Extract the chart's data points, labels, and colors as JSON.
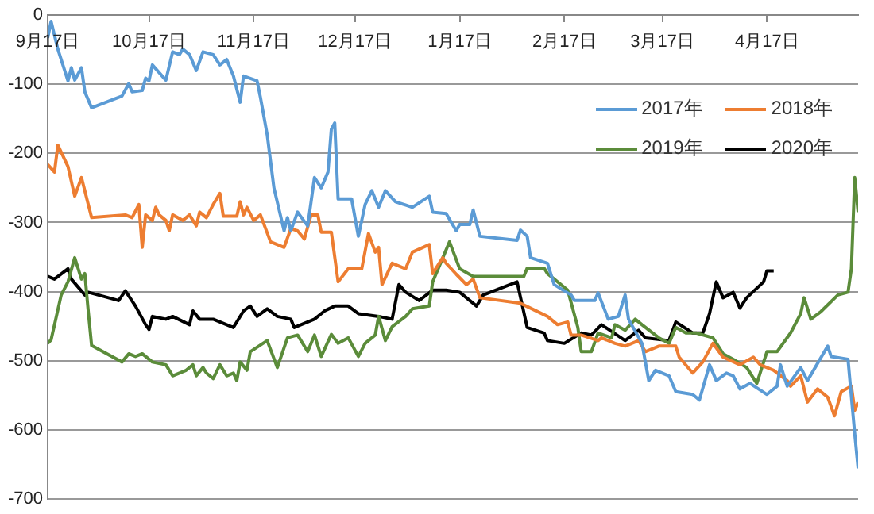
{
  "chart_data": {
    "type": "line",
    "xlim": [
      "2019-09-17",
      "2020-05-14"
    ],
    "ylim": [
      -700,
      0
    ],
    "xticks": [
      {
        "value": "2019-09-17",
        "label": "9月17日"
      },
      {
        "value": "2019-10-17",
        "label": "10月17日"
      },
      {
        "value": "2019-11-17",
        "label": "11月17日"
      },
      {
        "value": "2019-12-17",
        "label": "12月17日"
      },
      {
        "value": "2020-01-17",
        "label": "1月17日"
      },
      {
        "value": "2020-02-17",
        "label": "2月17日"
      },
      {
        "value": "2020-03-17",
        "label": "3月17日"
      },
      {
        "value": "2020-04-17",
        "label": "4月17日"
      }
    ],
    "yticks": [
      0,
      -100,
      -200,
      -300,
      -400,
      -500,
      -600,
      -700
    ],
    "grid": "y",
    "legend": "top right",
    "marker": "none",
    "line_style": "solid",
    "series": [
      {
        "name": "2017年",
        "color": "#5b9bd5",
        "x": [
          "2019-09-17",
          "2019-09-18",
          "2019-09-20",
          "2019-09-23",
          "2019-09-24",
          "2019-09-25",
          "2019-09-27",
          "2019-09-28",
          "2019-09-30",
          "2019-10-09",
          "2019-10-11",
          "2019-10-12",
          "2019-10-15",
          "2019-10-16",
          "2019-10-17",
          "2019-10-18",
          "2019-10-22",
          "2019-10-24",
          "2019-10-26",
          "2019-10-27",
          "2019-10-29",
          "2019-10-31",
          "2019-11-02",
          "2019-11-05",
          "2019-11-07",
          "2019-11-09",
          "2019-11-11",
          "2019-11-13",
          "2019-11-14",
          "2019-11-18",
          "2019-11-19",
          "2019-11-21",
          "2019-11-23",
          "2019-11-26",
          "2019-11-27",
          "2019-11-28",
          "2019-11-30",
          "2019-12-03",
          "2019-12-05",
          "2019-12-07",
          "2019-12-09",
          "2019-12-10",
          "2019-12-11",
          "2019-12-12",
          "2019-12-16",
          "2019-12-18",
          "2019-12-20",
          "2019-12-22",
          "2019-12-24",
          "2019-12-26",
          "2019-12-29",
          "2020-01-03",
          "2020-01-08",
          "2020-01-09",
          "2020-01-13",
          "2020-01-16",
          "2020-01-17",
          "2020-01-20",
          "2020-01-21",
          "2020-01-23",
          "2020-02-03",
          "2020-02-04",
          "2020-02-06",
          "2020-02-07",
          "2020-02-12",
          "2020-02-14",
          "2020-02-19",
          "2020-02-20",
          "2020-02-26",
          "2020-02-27",
          "2020-03-01",
          "2020-03-04",
          "2020-03-06",
          "2020-03-07",
          "2020-03-11",
          "2020-03-13",
          "2020-03-15",
          "2020-03-19",
          "2020-03-21",
          "2020-03-26",
          "2020-03-28",
          "2020-03-31",
          "2020-04-02",
          "2020-04-05",
          "2020-04-07",
          "2020-04-09",
          "2020-04-12",
          "2020-04-17",
          "2020-04-20",
          "2020-04-21",
          "2020-04-23",
          "2020-04-27",
          "2020-04-29",
          "2020-05-05",
          "2020-05-06",
          "2020-05-11",
          "2020-05-13",
          "2020-05-14"
        ],
        "values": [
          -33,
          -9,
          -49,
          -95,
          -76,
          -94,
          -76,
          -111,
          -134,
          -117,
          -99,
          -111,
          -109,
          -91,
          -95,
          -72,
          -94,
          -53,
          -57,
          -49,
          -57,
          -80,
          -53,
          -57,
          -72,
          -64,
          -88,
          -126,
          -88,
          -95,
          -119,
          -173,
          -250,
          -312,
          -293,
          -312,
          -285,
          -305,
          -235,
          -250,
          -227,
          -165,
          -156,
          -266,
          -266,
          -320,
          -274,
          -254,
          -278,
          -254,
          -270,
          -278,
          -262,
          -285,
          -287,
          -312,
          -303,
          -303,
          -282,
          -320,
          -326,
          -311,
          -320,
          -351,
          -359,
          -390,
          -405,
          -413,
          -413,
          -402,
          -440,
          -436,
          -405,
          -440,
          -475,
          -529,
          -514,
          -522,
          -545,
          -549,
          -557,
          -506,
          -529,
          -518,
          -522,
          -541,
          -533,
          -549,
          -537,
          -506,
          -537,
          -510,
          -529,
          -479,
          -494,
          -498,
          -606,
          -656
        ]
      },
      {
        "name": "2018年",
        "color": "#ed7d31",
        "x": [
          "2019-09-17",
          "2019-09-19",
          "2019-09-20",
          "2019-09-23",
          "2019-09-25",
          "2019-09-27",
          "2019-09-30",
          "2019-10-10",
          "2019-10-12",
          "2019-10-14",
          "2019-10-15",
          "2019-10-16",
          "2019-10-18",
          "2019-10-19",
          "2019-10-20",
          "2019-10-22",
          "2019-10-23",
          "2019-10-24",
          "2019-10-27",
          "2019-10-29",
          "2019-10-31",
          "2019-11-01",
          "2019-11-03",
          "2019-11-05",
          "2019-11-07",
          "2019-11-08",
          "2019-11-12",
          "2019-11-13",
          "2019-11-14",
          "2019-11-15",
          "2019-11-17",
          "2019-11-19",
          "2019-11-22",
          "2019-11-26",
          "2019-11-28",
          "2019-11-30",
          "2019-12-02",
          "2019-12-04",
          "2019-12-06",
          "2019-12-07",
          "2019-12-10",
          "2019-12-12",
          "2019-12-15",
          "2019-12-19",
          "2019-12-21",
          "2019-12-23",
          "2019-12-24",
          "2019-12-25",
          "2019-12-28",
          "2020-01-01",
          "2020-01-03",
          "2020-01-08",
          "2020-01-09",
          "2020-01-12",
          "2020-01-13",
          "2020-01-16",
          "2020-01-19",
          "2020-01-21",
          "2020-01-23",
          "2020-02-04",
          "2020-02-12",
          "2020-02-15",
          "2020-02-18",
          "2020-02-19",
          "2020-02-22",
          "2020-02-27",
          "2020-02-28",
          "2020-03-03",
          "2020-03-06",
          "2020-03-10",
          "2020-03-12",
          "2020-03-16",
          "2020-03-21",
          "2020-03-22",
          "2020-03-26",
          "2020-03-29",
          "2020-04-01",
          "2020-04-04",
          "2020-04-09",
          "2020-04-13",
          "2020-04-15",
          "2020-04-19",
          "2020-04-23",
          "2020-04-24",
          "2020-04-27",
          "2020-04-29",
          "2020-05-02",
          "2020-05-05",
          "2020-05-07",
          "2020-05-09",
          "2020-05-12",
          "2020-05-13",
          "2020-05-14"
        ],
        "values": [
          -216,
          -227,
          -188,
          -219,
          -262,
          -235,
          -293,
          -289,
          -293,
          -274,
          -336,
          -289,
          -297,
          -278,
          -289,
          -297,
          -312,
          -289,
          -297,
          -289,
          -305,
          -285,
          -293,
          -274,
          -258,
          -291,
          -291,
          -270,
          -289,
          -278,
          -297,
          -289,
          -328,
          -336,
          -309,
          -312,
          -324,
          -289,
          -289,
          -314,
          -314,
          -386,
          -367,
          -367,
          -316,
          -343,
          -336,
          -390,
          -359,
          -367,
          -343,
          -332,
          -374,
          -351,
          -359,
          -375,
          -390,
          -382,
          -409,
          -417,
          -436,
          -448,
          -444,
          -463,
          -463,
          -471,
          -467,
          -475,
          -479,
          -471,
          -487,
          -479,
          -479,
          -495,
          -518,
          -502,
          -475,
          -495,
          -506,
          -495,
          -506,
          -514,
          -529,
          -537,
          -522,
          -560,
          -541,
          -553,
          -580,
          -545,
          -537,
          -572,
          -560
        ]
      },
      {
        "name": "2019年",
        "color": "#5b8c3a",
        "x": [
          "2019-09-17",
          "2019-09-18",
          "2019-09-21",
          "2019-09-23",
          "2019-09-25",
          "2019-09-27",
          "2019-09-28",
          "2019-09-29",
          "2019-09-30",
          "2019-10-09",
          "2019-10-11",
          "2019-10-13",
          "2019-10-15",
          "2019-10-18",
          "2019-10-22",
          "2019-10-24",
          "2019-10-28",
          "2019-10-30",
          "2019-10-31",
          "2019-11-02",
          "2019-11-03",
          "2019-11-05",
          "2019-11-07",
          "2019-11-09",
          "2019-11-11",
          "2019-11-12",
          "2019-11-13",
          "2019-11-15",
          "2019-11-16",
          "2019-11-21",
          "2019-11-24",
          "2019-11-27",
          "2019-11-30",
          "2019-12-03",
          "2019-12-05",
          "2019-12-07",
          "2019-12-10",
          "2019-12-12",
          "2019-12-15",
          "2019-12-18",
          "2019-12-20",
          "2019-12-23",
          "2019-12-24",
          "2019-12-26",
          "2019-12-28",
          "2020-01-01",
          "2020-01-03",
          "2020-01-08",
          "2020-01-09",
          "2020-01-14",
          "2020-01-17",
          "2020-01-21",
          "2020-02-05",
          "2020-02-06",
          "2020-02-11",
          "2020-02-12",
          "2020-02-18",
          "2020-02-21",
          "2020-02-22",
          "2020-02-25",
          "2020-02-27",
          "2020-03-02",
          "2020-03-03",
          "2020-03-06",
          "2020-03-09",
          "2020-03-11",
          "2020-03-16",
          "2020-03-19",
          "2020-03-21",
          "2020-03-24",
          "2020-03-27",
          "2020-04-01",
          "2020-04-04",
          "2020-04-07",
          "2020-04-11",
          "2020-04-14",
          "2020-04-17",
          "2020-04-20",
          "2020-04-24",
          "2020-04-27",
          "2020-04-28",
          "2020-04-30",
          "2020-05-03",
          "2020-05-08",
          "2020-05-11",
          "2020-05-12",
          "2020-05-13",
          "2020-05-14"
        ],
        "values": [
          -475,
          -470,
          -405,
          -386,
          -351,
          -382,
          -374,
          -428,
          -478,
          -502,
          -490,
          -494,
          -490,
          -502,
          -506,
          -522,
          -514,
          -506,
          -522,
          -510,
          -518,
          -526,
          -506,
          -522,
          -518,
          -529,
          -502,
          -514,
          -487,
          -471,
          -510,
          -467,
          -463,
          -487,
          -463,
          -494,
          -462,
          -475,
          -467,
          -494,
          -475,
          -463,
          -436,
          -471,
          -451,
          -436,
          -425,
          -421,
          -386,
          -328,
          -367,
          -378,
          -378,
          -366,
          -366,
          -374,
          -398,
          -452,
          -487,
          -487,
          -460,
          -467,
          -448,
          -456,
          -440,
          -448,
          -467,
          -475,
          -452,
          -460,
          -460,
          -467,
          -490,
          -498,
          -510,
          -533,
          -487,
          -487,
          -460,
          -432,
          -409,
          -440,
          -429,
          -405,
          -401,
          -367,
          -235,
          -285
        ]
      },
      {
        "name": "2020年",
        "color": "#000000",
        "x": [
          "2019-09-17",
          "2019-09-19",
          "2019-09-23",
          "2019-09-24",
          "2019-09-28",
          "2019-09-29",
          "2019-10-08",
          "2019-10-10",
          "2019-10-13",
          "2019-10-16",
          "2019-10-17",
          "2019-10-18",
          "2019-10-22",
          "2019-10-24",
          "2019-10-29",
          "2019-10-30",
          "2019-11-01",
          "2019-11-05",
          "2019-11-11",
          "2019-11-14",
          "2019-11-16",
          "2019-11-18",
          "2019-11-21",
          "2019-11-24",
          "2019-11-28",
          "2019-11-29",
          "2019-12-05",
          "2019-12-08",
          "2019-12-11",
          "2019-12-15",
          "2019-12-18",
          "2019-12-24",
          "2019-12-28",
          "2019-12-30",
          "2020-01-01",
          "2020-01-05",
          "2020-01-09",
          "2020-01-13",
          "2020-01-17",
          "2020-01-22",
          "2020-01-24",
          "2020-02-03",
          "2020-02-06",
          "2020-02-11",
          "2020-02-12",
          "2020-02-17",
          "2020-02-22",
          "2020-02-25",
          "2020-02-28",
          "2020-03-06",
          "2020-03-10",
          "2020-03-12",
          "2020-03-19",
          "2020-03-21",
          "2020-03-26",
          "2020-03-29",
          "2020-03-31",
          "2020-04-02",
          "2020-04-04",
          "2020-04-07",
          "2020-04-09",
          "2020-04-11",
          "2020-04-16",
          "2020-04-17",
          "2020-04-19"
        ],
        "values": [
          -378,
          -382,
          -367,
          -382,
          -405,
          -401,
          -413,
          -399,
          -421,
          -448,
          -455,
          -436,
          -440,
          -436,
          -448,
          -428,
          -440,
          -440,
          -452,
          -428,
          -421,
          -436,
          -425,
          -436,
          -440,
          -452,
          -440,
          -428,
          -421,
          -421,
          -432,
          -436,
          -440,
          -390,
          -401,
          -413,
          -398,
          -398,
          -401,
          -421,
          -405,
          -386,
          -452,
          -460,
          -471,
          -475,
          -460,
          -463,
          -448,
          -471,
          -456,
          -467,
          -471,
          -444,
          -460,
          -460,
          -432,
          -386,
          -409,
          -401,
          -424,
          -409,
          -386,
          -370,
          -370
        ]
      }
    ]
  }
}
